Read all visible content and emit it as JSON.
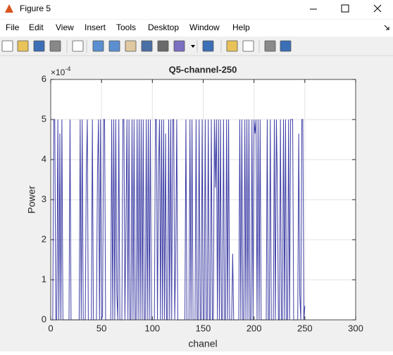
{
  "window": {
    "title": "Figure 5"
  },
  "menu": [
    "File",
    "Edit",
    "View",
    "Insert",
    "Tools",
    "Desktop",
    "Window",
    "Help"
  ],
  "chart_data": {
    "type": "line",
    "title": "Q5-channel-250",
    "xlabel": "chanel",
    "ylabel": "Power",
    "y_multiplier": {
      "base": "×10",
      "exponent": "-4"
    },
    "x": [
      1,
      2,
      3,
      4,
      5,
      6,
      7,
      8,
      9,
      10,
      11,
      12,
      13,
      14,
      15,
      16,
      17,
      18,
      19,
      20,
      21,
      22,
      23,
      24,
      25,
      26,
      27,
      28,
      29,
      30,
      31,
      32,
      33,
      34,
      35,
      36,
      37,
      38,
      39,
      40,
      41,
      42,
      43,
      44,
      45,
      46,
      47,
      48,
      49,
      50,
      51,
      52,
      53,
      54,
      55,
      56,
      57,
      58,
      59,
      60,
      61,
      62,
      63,
      64,
      65,
      66,
      67,
      68,
      69,
      70,
      71,
      72,
      73,
      74,
      75,
      76,
      77,
      78,
      79,
      80,
      81,
      82,
      83,
      84,
      85,
      86,
      87,
      88,
      89,
      90,
      91,
      92,
      93,
      94,
      95,
      96,
      97,
      98,
      99,
      100,
      101,
      102,
      103,
      104,
      105,
      106,
      107,
      108,
      109,
      110,
      111,
      112,
      113,
      114,
      115,
      116,
      117,
      118,
      119,
      120,
      121,
      122,
      123,
      124,
      125,
      126,
      127,
      128,
      129,
      130,
      131,
      132,
      133,
      134,
      135,
      136,
      137,
      138,
      139,
      140,
      141,
      142,
      143,
      144,
      145,
      146,
      147,
      148,
      149,
      150,
      151,
      152,
      153,
      154,
      155,
      156,
      157,
      158,
      159,
      160,
      161,
      162,
      163,
      164,
      165,
      166,
      167,
      168,
      169,
      170,
      171,
      172,
      173,
      174,
      175,
      176,
      177,
      178,
      179,
      180,
      181,
      182,
      183,
      184,
      185,
      186,
      187,
      188,
      189,
      190,
      191,
      192,
      193,
      194,
      195,
      196,
      197,
      198,
      199,
      200,
      201,
      202,
      203,
      204,
      205,
      206,
      207,
      208,
      209,
      210,
      211,
      212,
      213,
      214,
      215,
      216,
      217,
      218,
      219,
      220,
      221,
      222,
      223,
      224,
      225,
      226,
      227,
      228,
      229,
      230,
      231,
      232,
      233,
      234,
      235,
      236,
      237,
      238,
      239,
      240,
      241,
      242,
      243,
      244,
      245,
      246,
      247,
      248,
      249,
      250
    ],
    "values": [
      0,
      0,
      5,
      5,
      0,
      0,
      5,
      0,
      4.65,
      0,
      5,
      0,
      0,
      0,
      0,
      0,
      0,
      0,
      5,
      0,
      0,
      0,
      0,
      0,
      0,
      0,
      0,
      0,
      5,
      0,
      5,
      0,
      0,
      0,
      3.65,
      5,
      0,
      0,
      0,
      0,
      5,
      0,
      0,
      0,
      0,
      3.65,
      5,
      0,
      5,
      0,
      0.1,
      5,
      5,
      0,
      0,
      0,
      0,
      0,
      0,
      5,
      0,
      5,
      0,
      5,
      0.65,
      0,
      5,
      0,
      0,
      0,
      5,
      5,
      0,
      2.35,
      5,
      0,
      5,
      0,
      0,
      5,
      0,
      5,
      0,
      0,
      5,
      0,
      5,
      0,
      5,
      0,
      5,
      0,
      0,
      5,
      0,
      5,
      0,
      5,
      0,
      0,
      0,
      0,
      5,
      5,
      0,
      3.65,
      5,
      0,
      5,
      0,
      5,
      0,
      4.65,
      0,
      0,
      5,
      0,
      5,
      0,
      5,
      5,
      0,
      1.65,
      5,
      0,
      0,
      0,
      0,
      0,
      0,
      0,
      0,
      5,
      0,
      0,
      0,
      5,
      0,
      5,
      0,
      0,
      0,
      5,
      0,
      0,
      5,
      0,
      0,
      5,
      0,
      0,
      5,
      0,
      0,
      5,
      0,
      0,
      5,
      0,
      0,
      5,
      3.3,
      5,
      0,
      5,
      0,
      5,
      0,
      0,
      5,
      0,
      0,
      5,
      0,
      5,
      0,
      0,
      0,
      1.65,
      0,
      0,
      0,
      0,
      0,
      0,
      5,
      0,
      5,
      0,
      0,
      5,
      0,
      5,
      0,
      5,
      0,
      0,
      5,
      0,
      5,
      4.65,
      5,
      0,
      5,
      0,
      5,
      0,
      0,
      0,
      0,
      0,
      0,
      5,
      0,
      0,
      5,
      0,
      0,
      0,
      5,
      0,
      5,
      3.35,
      0,
      0,
      5,
      0,
      0,
      5,
      0,
      5,
      0,
      0,
      5,
      0,
      5,
      5,
      5,
      0,
      0,
      0,
      0,
      0,
      4.65,
      0.65,
      0,
      5,
      5,
      0,
      0.35
    ],
    "color": "#3f3fa6",
    "xlim": [
      0,
      300
    ],
    "ylim": [
      0,
      6
    ],
    "xticks": [
      0,
      50,
      100,
      150,
      200,
      250,
      300
    ],
    "yticks": [
      0,
      1,
      2,
      3,
      4,
      5,
      6
    ],
    "grid": true
  }
}
